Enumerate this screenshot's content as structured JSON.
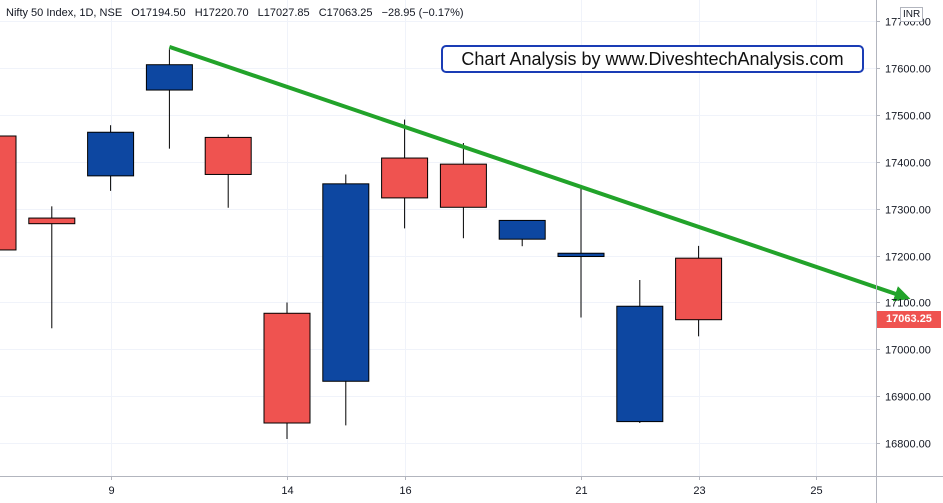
{
  "legend": {
    "symbol": "Nifty 50 Index, 1D, NSE",
    "open": "O17194.50",
    "high": "H17220.70",
    "low": "L17027.85",
    "close": "C17063.25",
    "change": "−28.95 (−0.17%)"
  },
  "currency": "INR",
  "watermark": "Chart Analysis by www.DiveshtechAnalysis.com",
  "last_price_label": "17063.25",
  "colors": {
    "up": "#0d47a1",
    "down": "#ef5350",
    "trendline": "#22a32a",
    "watermark_border": "#1a3cb5"
  },
  "chart_data": {
    "type": "candlestick",
    "x_tick_labels": [
      "9",
      "14",
      "16",
      "21",
      "23",
      "25"
    ],
    "y_tick_labels": [
      "16800.00",
      "16900.00",
      "17000.00",
      "17100.00",
      "17200.00",
      "17300.00",
      "17400.00",
      "17500.00",
      "17600.00",
      "17700.00"
    ],
    "ylim": [
      16730,
      17745
    ],
    "grid": true,
    "candles": [
      {
        "open": 17455,
        "close": 17212,
        "high": 17455,
        "low": 17212
      },
      {
        "open": 17280,
        "close": 17268,
        "high": 17305,
        "low": 17045
      },
      {
        "open": 17370,
        "close": 17463,
        "high": 17478,
        "low": 17338
      },
      {
        "open": 17553,
        "close": 17607,
        "high": 17640,
        "low": 17428
      },
      {
        "open": 17452,
        "close": 17373,
        "high": 17458,
        "low": 17302
      },
      {
        "open": 17077,
        "close": 16843,
        "high": 17100,
        "low": 16809
      },
      {
        "open": 16932,
        "close": 17353,
        "high": 17373,
        "low": 16838
      },
      {
        "open": 17408,
        "close": 17323,
        "high": 17490,
        "low": 17258
      },
      {
        "open": 17395,
        "close": 17303,
        "high": 17440,
        "low": 17237
      },
      {
        "open": 17235,
        "close": 17275,
        "high": 17275,
        "low": 17220
      },
      {
        "open": 17198,
        "close": 17205,
        "high": 17348,
        "low": 17068
      },
      {
        "open": 16846,
        "close": 17092,
        "high": 17148,
        "low": 16843
      },
      {
        "open": 17194.5,
        "close": 17063.25,
        "high": 17220.7,
        "low": 17027.85
      }
    ],
    "trendline": {
      "start": {
        "candle": 3,
        "price": 17645
      },
      "end": {
        "candle": 15.5,
        "price": 17112
      }
    }
  }
}
